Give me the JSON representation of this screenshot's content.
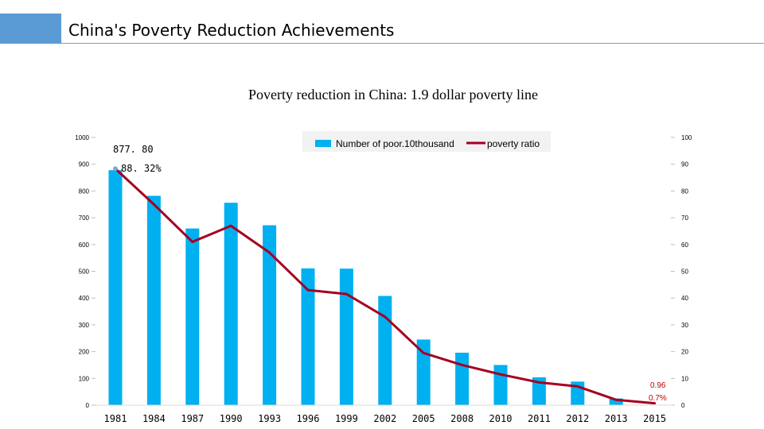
{
  "header": {
    "title": "China's Poverty Reduction Achievements"
  },
  "colors": {
    "header_block": "#5b9bd5",
    "bars": "#00b0f0",
    "line": "#a50021",
    "annotation_red": "#c00000"
  },
  "chart_data": {
    "type": "bar",
    "title": "Poverty reduction in China: 1.9 dollar poverty line",
    "categories": [
      "1981",
      "1984",
      "1987",
      "1990",
      "1993",
      "1996",
      "1999",
      "2002",
      "2005",
      "2008",
      "2010",
      "2011",
      "2012",
      "2013",
      "2015"
    ],
    "series": [
      {
        "name": "Number of poor.10thousand",
        "type": "bar",
        "axis": "left",
        "values": [
          877.8,
          782,
          660,
          756,
          672,
          511,
          510,
          408,
          245,
          196,
          150,
          104,
          88,
          25,
          0.96
        ]
      },
      {
        "name": "poverty ratio",
        "type": "line",
        "axis": "right",
        "values": [
          88.32,
          75,
          61,
          67,
          57,
          43,
          41.5,
          33,
          19.5,
          15,
          11.5,
          8.5,
          7,
          2,
          0.7
        ]
      }
    ],
    "y_left": {
      "min": 0,
      "max": 1000,
      "ticks": [
        0,
        100,
        200,
        300,
        400,
        500,
        600,
        700,
        800,
        900,
        1000
      ]
    },
    "y_right": {
      "min": 0,
      "max": 100,
      "ticks": [
        0,
        10,
        20,
        30,
        40,
        50,
        60,
        70,
        80,
        90,
        100
      ]
    },
    "legend_position": "top-right",
    "annotations": {
      "first_bar_value": "877. 80",
      "first_ratio_value": "88. 32%",
      "last_bar_value": "0.96",
      "last_ratio_value": "0.7%"
    }
  }
}
